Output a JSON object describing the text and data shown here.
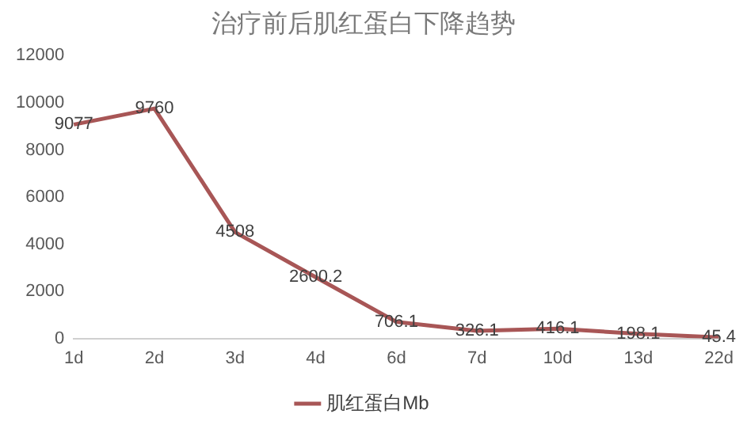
{
  "chart_data": {
    "type": "line",
    "title": "治疗前后肌红蛋白下降趋势",
    "categories": [
      "1d",
      "2d",
      "3d",
      "4d",
      "6d",
      "7d",
      "10d",
      "13d",
      "22d"
    ],
    "series": [
      {
        "name": "肌红蛋白Mb",
        "color": "#a85656",
        "values": [
          9077,
          9760,
          4508,
          2600.2,
          706.1,
          326.1,
          416.1,
          198.1,
          45.4
        ]
      }
    ],
    "ylim": [
      0,
      12000
    ],
    "yticks": [
      0,
      2000,
      4000,
      6000,
      8000,
      10000,
      12000
    ],
    "grid": false,
    "legend": "bottom",
    "data_labels": true,
    "marker": "none"
  }
}
